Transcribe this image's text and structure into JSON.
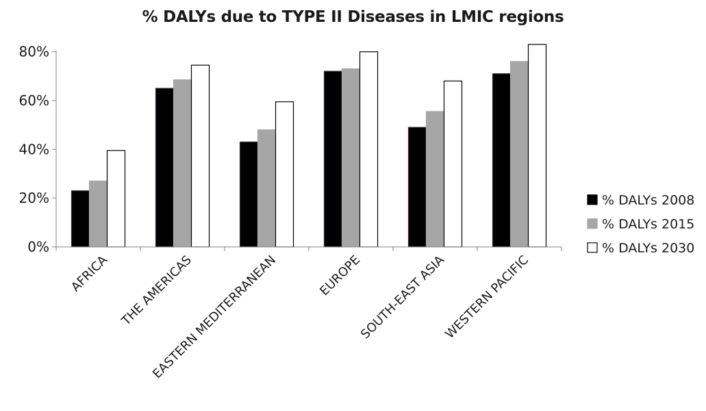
{
  "chart_data": {
    "type": "bar",
    "title": "% DALYs due to TYPE II Diseases in LMIC regions",
    "xlabel": "",
    "ylabel": "",
    "categories": [
      "AFRICA",
      "THE AMERICAS",
      "EASTERN MEDITERRANEAN",
      "EUROPE",
      "SOUTH-EAST ASIA",
      "WESTERN PACIFIC"
    ],
    "series": [
      {
        "name": "% DALYs 2008",
        "values": [
          23,
          65,
          43,
          72,
          49,
          71
        ],
        "color": "#000000"
      },
      {
        "name": "% DALYs 2015",
        "values": [
          27,
          68.5,
          48,
          73,
          55.5,
          76
        ],
        "color": "#a6a6a6"
      },
      {
        "name": "% DALYs 2030",
        "values": [
          39.5,
          74.5,
          59.5,
          80,
          68,
          83
        ],
        "color": "#ffffff"
      }
    ],
    "y_ticks": [
      "0%",
      "20%",
      "40%",
      "60%",
      "80%"
    ],
    "ylim": [
      0,
      90
    ],
    "grid": false,
    "legend_position": "right"
  }
}
